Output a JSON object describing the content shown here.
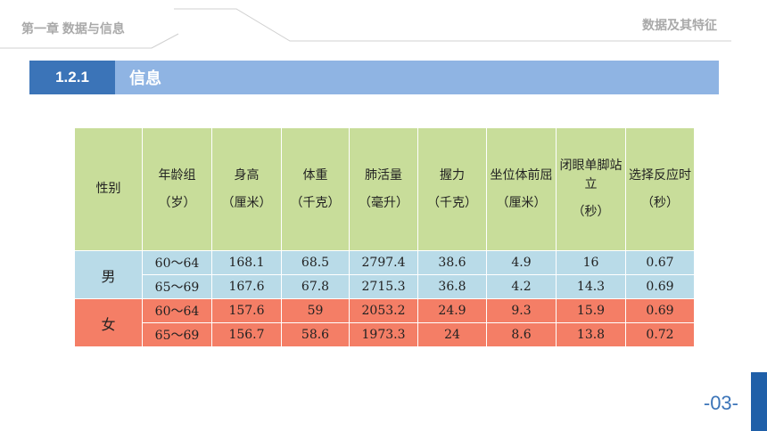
{
  "header": {
    "chapter": "第一章 数据与信息",
    "section_name": "数据及其特征"
  },
  "section": {
    "number": "1.2.1",
    "title": "信息"
  },
  "table": {
    "gender_header": "性别",
    "columns": [
      {
        "name": "年龄组",
        "unit": "（岁）"
      },
      {
        "name": "身高",
        "unit": "（厘米）"
      },
      {
        "name": "体重",
        "unit": "（千克）"
      },
      {
        "name": "肺活量",
        "unit": "（毫升）"
      },
      {
        "name": "握力",
        "unit": "（千克）"
      },
      {
        "name": "坐位体前屈",
        "unit": "（厘米）"
      },
      {
        "name": "闭眼单脚站立",
        "unit": "（秒）"
      },
      {
        "name": "选择反应时",
        "unit": "（秒）"
      }
    ],
    "groups": [
      {
        "gender": "男",
        "rows": [
          [
            "60～64",
            "168.1",
            "68.5",
            "2797.4",
            "38.6",
            "4.9",
            "16",
            "0.67"
          ],
          [
            "65～69",
            "167.6",
            "67.8",
            "2715.3",
            "36.8",
            "4.2",
            "14.3",
            "0.69"
          ]
        ]
      },
      {
        "gender": "女",
        "rows": [
          [
            "60～64",
            "157.6",
            "59",
            "2053.2",
            "24.9",
            "9.3",
            "15.9",
            "0.69"
          ],
          [
            "65～69",
            "156.7",
            "58.6",
            "1973.3",
            "24",
            "8.6",
            "13.8",
            "0.72"
          ]
        ]
      }
    ]
  },
  "page": {
    "number": "-03-"
  },
  "colors": {
    "accent": "#3b74b8",
    "bar": "#8fb4e3",
    "header_row": "#c8dd9a",
    "male_rows": "#b9dbe8",
    "female_rows": "#f47e66"
  }
}
